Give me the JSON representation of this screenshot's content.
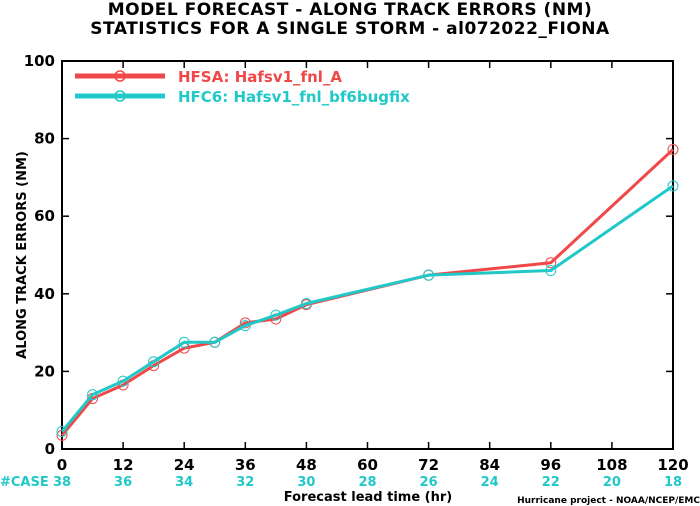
{
  "chart_data": {
    "type": "line",
    "title": "MODEL FORECAST - ALONG TRACK ERRORS (NM)",
    "subtitle": "STATISTICS FOR A SINGLE STORM - al072022_FIONA",
    "xlabel": "Forecast lead time (hr)",
    "ylabel": "ALONG TRACK ERRORS (NM)",
    "credit": "Hurricane project - NOAA/NCEP/EMC",
    "xlim": [
      0,
      120
    ],
    "ylim": [
      0,
      100
    ],
    "x_ticks": [
      0,
      12,
      24,
      36,
      48,
      60,
      72,
      84,
      96,
      108,
      120
    ],
    "y_ticks": [
      0,
      20,
      40,
      60,
      80,
      100
    ],
    "case_label": "#CASE",
    "case_counts": [
      "38",
      "36",
      "34",
      "32",
      "30",
      "28",
      "26",
      "24",
      "22",
      "20",
      "18"
    ],
    "legend_position": "top-left",
    "grid": false,
    "series": [
      {
        "name": "HFSA: Hafsv1_fnl_A",
        "color": "#f04848",
        "points": [
          [
            0,
            3.5
          ],
          [
            6,
            13
          ],
          [
            12,
            16.5
          ],
          [
            18,
            21.5
          ],
          [
            24,
            26
          ],
          [
            30,
            27.5
          ],
          [
            36,
            32.5
          ],
          [
            42,
            33.5
          ],
          [
            48,
            37.2
          ],
          [
            72,
            44.8
          ],
          [
            96,
            48
          ],
          [
            120,
            77.2
          ]
        ]
      },
      {
        "name": "HFC6: Hafsv1_fnl_bf6bugfix",
        "color": "#20c8c8",
        "points": [
          [
            0,
            4.5
          ],
          [
            6,
            14
          ],
          [
            12,
            17.5
          ],
          [
            18,
            22.5
          ],
          [
            24,
            27.5
          ],
          [
            30,
            27.5
          ],
          [
            36,
            31.8
          ],
          [
            42,
            34.5
          ],
          [
            48,
            37.5
          ],
          [
            72,
            44.8
          ],
          [
            96,
            46
          ],
          [
            120,
            67.8
          ]
        ]
      }
    ]
  }
}
